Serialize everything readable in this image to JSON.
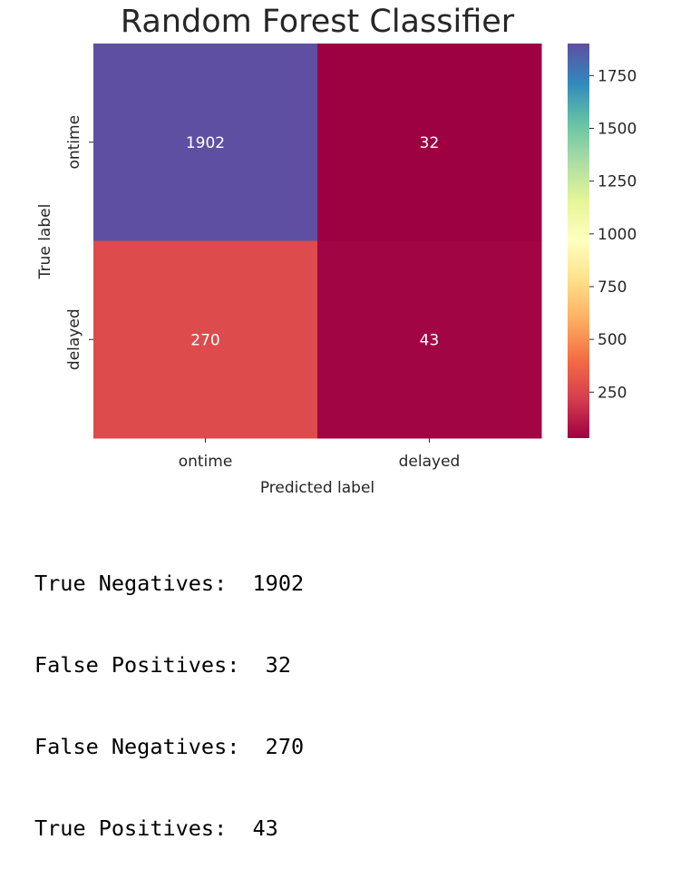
{
  "chart_data": {
    "type": "heatmap",
    "title": "Random Forest Classifier",
    "xlabel": "Predicted label",
    "ylabel": "True label",
    "x_categories": [
      "ontime",
      "delayed"
    ],
    "y_categories": [
      "ontime",
      "delayed"
    ],
    "values": [
      [
        1902,
        32
      ],
      [
        270,
        43
      ]
    ],
    "colormap": "Spectral",
    "colorbar": {
      "ticks": [
        250,
        500,
        750,
        1000,
        1250,
        1500,
        1750
      ],
      "range": [
        32,
        1902
      ]
    }
  },
  "summary": [
    {
      "label": "True Negatives:",
      "value": "1902"
    },
    {
      "label": "False Positives:",
      "value": "32"
    },
    {
      "label": "False Negatives:",
      "value": "270"
    },
    {
      "label": "True Positives:",
      "value": "43"
    }
  ]
}
